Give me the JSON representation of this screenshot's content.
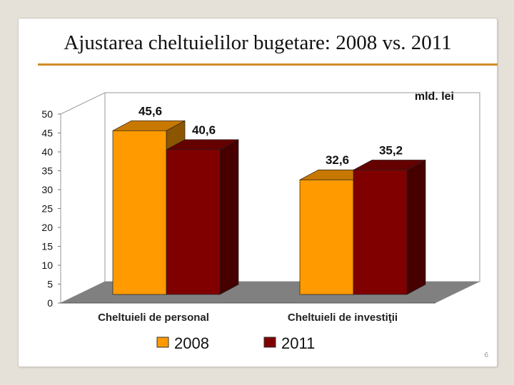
{
  "slide": {
    "title": "Ajustarea cheltuielilor bugetare: 2008 vs. 2011",
    "page_number": "6",
    "accent_color": "#d08c26"
  },
  "chart_data": {
    "type": "bar",
    "categories": [
      "Cheltuieli de personal",
      "Cheltuieli de investiţii"
    ],
    "series": [
      {
        "name": "2008",
        "values": [
          45.6,
          32.6
        ],
        "labels": [
          "45,6",
          "32,6"
        ],
        "color": "#ff9a00"
      },
      {
        "name": "2011",
        "values": [
          40.6,
          35.2
        ],
        "labels": [
          "40,6",
          "35,2"
        ],
        "color": "#800000"
      }
    ],
    "unit_annotation": "mld. lei",
    "ylim": [
      0,
      50
    ],
    "yticks": [
      0,
      5,
      10,
      15,
      20,
      25,
      30,
      35,
      40,
      45,
      50
    ],
    "grid": false,
    "three_d": true,
    "legend": "bottom",
    "floor_color": "#808080"
  }
}
